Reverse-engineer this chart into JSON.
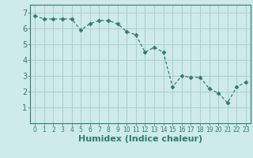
{
  "x": [
    0,
    1,
    2,
    3,
    4,
    5,
    6,
    7,
    8,
    9,
    10,
    11,
    12,
    13,
    14,
    15,
    16,
    17,
    18,
    19,
    20,
    21,
    22,
    23
  ],
  "y": [
    6.8,
    6.6,
    6.6,
    6.6,
    6.6,
    5.9,
    6.3,
    6.5,
    6.5,
    6.3,
    5.8,
    5.6,
    4.5,
    4.8,
    4.5,
    2.3,
    3.0,
    2.9,
    2.9,
    2.2,
    1.9,
    1.3,
    2.3,
    2.6
  ],
  "xlim": [
    -0.5,
    23.5
  ],
  "ylim": [
    0,
    7.5
  ],
  "yticks": [
    1,
    2,
    3,
    4,
    5,
    6,
    7
  ],
  "xtick_labels": [
    "0",
    "1",
    "2",
    "3",
    "4",
    "5",
    "6",
    "7",
    "8",
    "9",
    "10",
    "11",
    "12",
    "13",
    "14",
    "15",
    "16",
    "17",
    "18",
    "19",
    "20",
    "21",
    "22",
    "23"
  ],
  "xlabel": "Humidex (Indice chaleur)",
  "line_color": "#2e7d6e",
  "marker": "D",
  "marker_size": 2.5,
  "bg_color": "#ceeaea",
  "grid_color": "#aecece",
  "tick_color": "#2e7d6e",
  "xlabel_fontsize": 8,
  "ytick_fontsize": 7,
  "xtick_fontsize": 5.5
}
